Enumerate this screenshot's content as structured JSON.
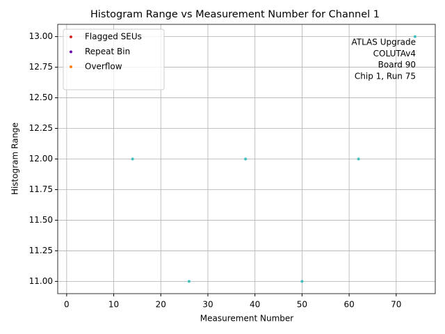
{
  "chart_data": {
    "type": "scatter",
    "title": "Histogram Range vs Measurement Number for Channel 1",
    "x_label": "Measurement Number",
    "y_label": "Histogram Range",
    "annotation": [
      "ATLAS Upgrade",
      "COLUTAv4",
      "Board 90",
      "Chip 1, Run 75"
    ],
    "series": [
      {
        "color": "#40bfbf",
        "x": [
          14,
          26,
          38,
          50,
          62,
          74
        ],
        "values": [
          12,
          11,
          12,
          11,
          12,
          13
        ]
      },
      {
        "name": "Flagged SEUs",
        "color": "#d62728",
        "x": [],
        "values": []
      },
      {
        "name": "Repeat Bin",
        "color": "#6a0dad",
        "x": [],
        "values": []
      },
      {
        "name": "Overflow",
        "color": "#ff7f0e",
        "x": [],
        "values": []
      }
    ],
    "xlim": [
      -1.9,
      78.3
    ],
    "ylim": [
      10.9,
      13.1
    ],
    "xticks": [
      0,
      10,
      20,
      30,
      40,
      50,
      60,
      70
    ],
    "yticks": [
      {
        "value": 11,
        "label": "11.00"
      },
      11.25,
      {
        "value": 11.5,
        "label": "11.50"
      },
      11.75,
      {
        "value": 12,
        "label": "12.00"
      },
      12.25,
      {
        "value": 12.5,
        "label": "12.50"
      },
      12.75,
      {
        "value": 13,
        "label": "13.00"
      }
    ],
    "grid": true,
    "legend": "upper left"
  }
}
